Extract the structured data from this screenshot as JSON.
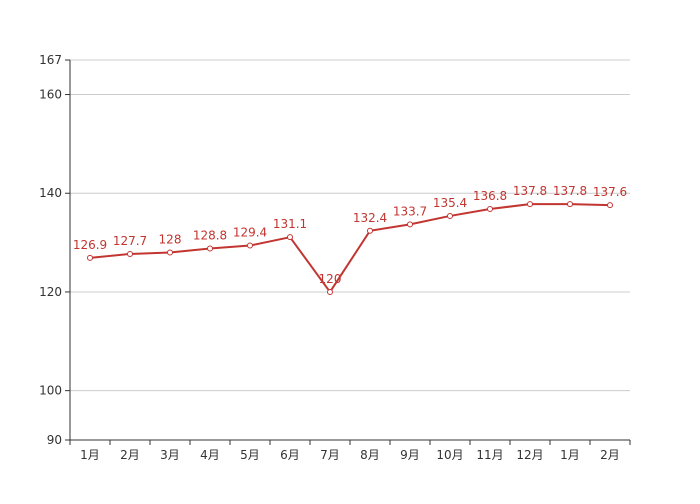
{
  "chart_data": {
    "type": "line",
    "categories": [
      "1月",
      "2月",
      "3月",
      "4月",
      "5月",
      "6月",
      "7月",
      "8月",
      "9月",
      "10月",
      "11月",
      "12月",
      "1月",
      "2月"
    ],
    "values": [
      126.9,
      127.7,
      128,
      128.8,
      129.4,
      131.1,
      120,
      132.4,
      133.7,
      135.4,
      136.8,
      137.8,
      137.8,
      137.6
    ],
    "data_labels": [
      "126.9",
      "127.7",
      "128",
      "128.8",
      "129.4",
      "131.1",
      "120",
      "132.4",
      "133.7",
      "135.4",
      "136.8",
      "137.8",
      "137.8",
      "137.6"
    ],
    "title": "",
    "xlabel": "",
    "ylabel": "",
    "ylim": [
      90,
      167
    ],
    "yticks": [
      90,
      100,
      120,
      140,
      160,
      167
    ],
    "ytick_labels": [
      "90",
      "100",
      "120",
      "140",
      "160",
      "167"
    ],
    "grid": true,
    "legend": "none",
    "colors": {
      "line": "#c23531",
      "label": "#c23531",
      "marker_fill": "#ffffff",
      "grid": "#cccccc",
      "axis": "#333333",
      "tick_text": "#333333"
    }
  }
}
